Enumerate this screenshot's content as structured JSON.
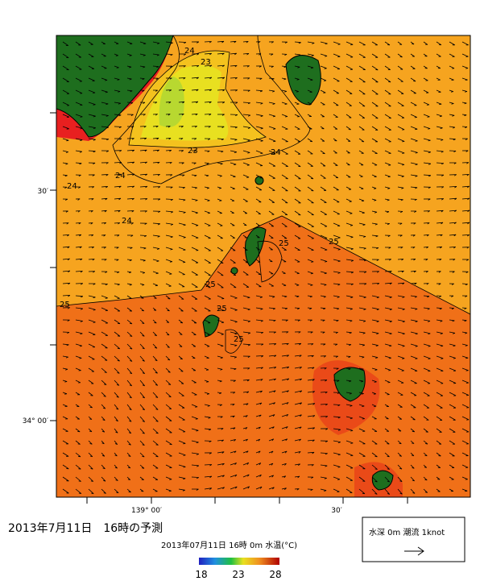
{
  "map": {
    "lat_labels": [
      "30′",
      "34° 00′"
    ],
    "lon_labels": [
      "139° 00′",
      "30′"
    ],
    "contour_labels": [
      "24",
      "23",
      "24",
      "24",
      "24",
      "23",
      "24",
      "25",
      "25",
      "25",
      "25",
      "25",
      "25"
    ]
  },
  "caption": {
    "title": "2013年7月11日　16時の予測",
    "subtitle": "2013年07月11日 16時 0m 水温(°C)"
  },
  "colorbar": {
    "range": [
      18,
      28
    ],
    "ticks": [
      18,
      23,
      28
    ]
  },
  "legend": {
    "label": "水深 0m 潮流 1knot"
  }
}
